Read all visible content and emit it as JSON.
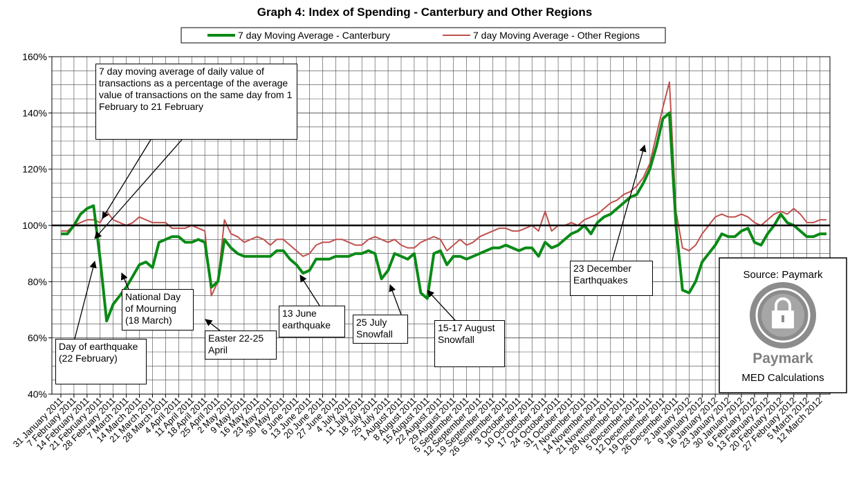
{
  "chart_data": {
    "type": "line",
    "title": "Graph 4: Index of Spending - Canterbury and Other Regions",
    "categories": [
      "31 January 2011",
      null,
      "7 February 2011",
      null,
      "14 February 2011",
      null,
      "21 February 2011",
      null,
      "28 February 2011",
      null,
      "7 March 2011",
      null,
      "14 March 2011",
      null,
      "21 March 2011",
      null,
      "28 March 2011",
      null,
      "4 April 2011",
      null,
      "11 April 2011",
      null,
      "18 April 2011",
      null,
      "25 April 2011",
      null,
      "2 May 2011",
      null,
      "9 May 2011",
      null,
      "16 May 2011",
      null,
      "23 May 2011",
      null,
      "30 May 2011",
      null,
      "6 June 2011",
      null,
      "13 June 2011",
      null,
      "20 June 2011",
      null,
      "27 June 2011",
      null,
      "4 July 2011",
      null,
      "11 July 2011",
      null,
      "18 July 2011",
      null,
      "25 July 2011",
      null,
      "1 August 2011",
      null,
      "8 August 2011",
      null,
      "15 August 2011",
      null,
      "22 August 2011",
      null,
      "29 August 2011",
      null,
      "5 September 2011",
      null,
      "12 September 2011",
      null,
      "19 September 2011",
      null,
      "26 September 2011",
      null,
      "3 October 2011",
      null,
      "10 October 2011",
      null,
      "17 October 2011",
      null,
      "24 October 2011",
      null,
      "31 October 2011",
      null,
      "7 November 2011",
      null,
      "14 November 2011",
      null,
      "21 November 2011",
      null,
      "28 November 2011",
      null,
      "5 December 2011",
      null,
      "12 December 2011",
      null,
      "19 December 2011",
      null,
      "26 December 2011",
      null,
      "2 January 2012",
      null,
      "9 January 2012",
      null,
      "16 January 2012",
      null,
      "23 January 2012",
      null,
      "30 January 2012",
      null,
      "6 February 2012",
      null,
      "13 February 2012",
      null,
      "20 February 2012",
      null,
      "27 February 2012",
      null,
      "5 March 2012",
      null,
      "12 March 2012",
      null
    ],
    "series": [
      {
        "name": "7 day Moving Average - Canterbury",
        "color": "#0a8a16",
        "width": 4,
        "values": [
          97,
          97,
          100,
          104,
          106,
          107,
          88,
          66,
          72,
          75,
          78,
          82,
          86,
          87,
          85,
          94,
          95,
          96,
          96,
          94,
          94,
          95,
          94,
          78,
          80,
          95,
          92,
          90,
          89,
          89,
          89,
          89,
          89,
          91,
          91,
          88,
          86,
          83,
          84,
          88,
          88,
          88,
          89,
          89,
          89,
          90,
          90,
          91,
          90,
          81,
          84,
          90,
          89,
          88,
          90,
          76,
          74,
          90,
          91,
          86,
          89,
          89,
          88,
          89,
          90,
          91,
          92,
          92,
          93,
          92,
          91,
          92,
          92,
          89,
          94,
          92,
          93,
          95,
          97,
          98,
          100,
          97,
          101,
          103,
          104,
          106,
          108,
          110,
          111,
          115,
          120,
          128,
          138,
          140,
          100,
          77,
          76,
          80,
          87,
          90,
          93,
          97,
          96,
          96,
          98,
          99,
          94,
          93,
          97,
          100,
          104,
          101,
          100,
          98,
          96,
          96,
          97,
          97
        ]
      },
      {
        "name": "7 day Moving Average - Other Regions",
        "color": "#c0504d",
        "width": 2,
        "values": [
          98,
          98,
          100,
          101,
          102,
          102,
          101,
          105,
          102,
          101,
          100,
          101,
          103,
          102,
          101,
          101,
          101,
          99,
          99,
          99,
          100,
          99,
          98,
          75,
          80,
          102,
          97,
          96,
          94,
          95,
          96,
          95,
          93,
          95,
          95,
          93,
          91,
          89,
          90,
          93,
          94,
          94,
          95,
          95,
          94,
          93,
          93,
          95,
          96,
          95,
          94,
          95,
          93,
          92,
          92,
          94,
          95,
          96,
          95,
          91,
          93,
          95,
          93,
          94,
          96,
          97,
          98,
          99,
          99,
          98,
          98,
          99,
          100,
          98,
          105,
          98,
          100,
          100,
          101,
          100,
          102,
          103,
          104,
          106,
          108,
          109,
          111,
          112,
          114,
          117,
          122,
          132,
          142,
          151,
          105,
          92,
          91,
          93,
          97,
          100,
          103,
          104,
          103,
          103,
          104,
          103,
          101,
          100,
          102,
          104,
          105,
          104,
          106,
          104,
          101,
          101,
          102,
          102
        ]
      }
    ],
    "ylim": [
      40,
      160
    ],
    "yticks": [
      {
        "value": 40,
        "label": "40%"
      },
      {
        "value": 60,
        "label": "60%"
      },
      {
        "value": 80,
        "label": "80%"
      },
      {
        "value": 100,
        "label": "100%"
      },
      {
        "value": 120,
        "label": "120%"
      },
      {
        "value": 140,
        "label": "140%"
      },
      {
        "value": 160,
        "label": "160%"
      }
    ],
    "yminorticks": [
      45,
      50,
      55,
      65,
      70,
      75,
      85,
      90,
      95,
      105,
      110,
      115,
      125,
      130,
      135,
      145,
      150,
      155
    ],
    "reference_line": 100,
    "grid": true,
    "legend": "top",
    "annotations": [
      "7 day moving average of daily value of transactions as a percentage of the average value of transactions on the same day from 1 February to 21 February",
      "Day of earthquake (22 February)",
      "National Day of Mourning (18 March)",
      "Easter 22-25 April",
      "13 June earthquake",
      "25 July Snowfall",
      "15-17 August Snowfall",
      "23 December Earthquakes"
    ],
    "source": {
      "label": "Source: Paymark",
      "logo": "Paymark",
      "note": "MED Calculations"
    }
  }
}
